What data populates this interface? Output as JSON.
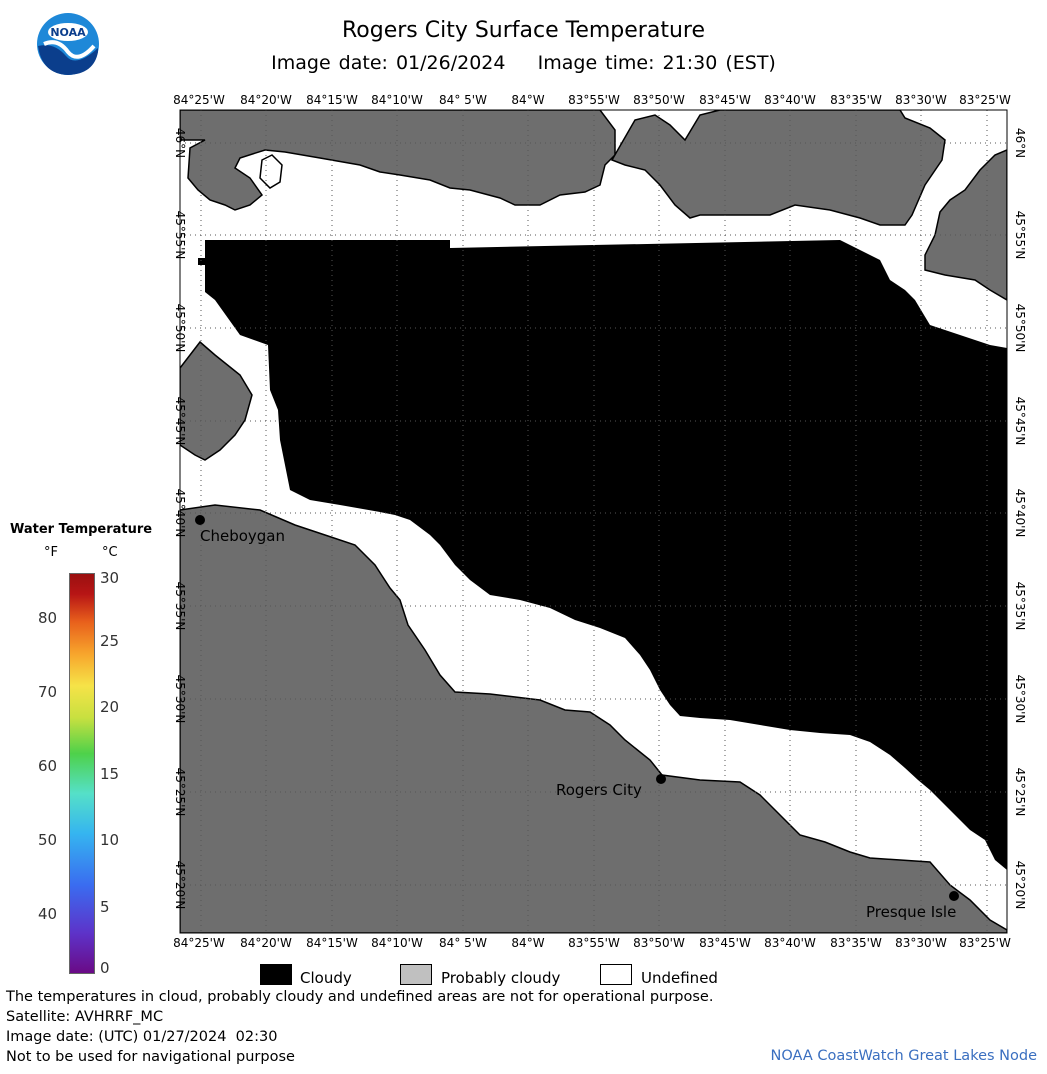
{
  "header": {
    "title": "Rogers City Surface Temperature",
    "subtitle": "Image date: 01/26/2024    Image time: 21:30 (EST)"
  },
  "logo": {
    "text": "NOAA",
    "icon": "noaa-logo-icon"
  },
  "axes": {
    "longitudes": [
      "84°25'W",
      "84°20'W",
      "84°15'W",
      "84°10'W",
      "84° 5'W",
      "84°W",
      "83°55'W",
      "83°50'W",
      "83°45'W",
      "83°40'W",
      "83°35'W",
      "83°30'W",
      "83°25'W"
    ],
    "latitudes": [
      "46°N",
      "45°55'N",
      "45°50'N",
      "45°45'N",
      "45°40'N",
      "45°35'N",
      "45°30'N",
      "45°25'N",
      "45°20'N"
    ]
  },
  "places": [
    {
      "name": "Cheboygan"
    },
    {
      "name": "Rogers City"
    },
    {
      "name": "Presque Isle"
    }
  ],
  "color_scale": {
    "title": "Water Temperature",
    "unit_f": "°F",
    "unit_c": "°C",
    "f_ticks": [
      "80",
      "70",
      "60",
      "50",
      "40"
    ],
    "c_ticks": [
      "30",
      "25",
      "20",
      "15",
      "10",
      "5",
      "0"
    ]
  },
  "legend": {
    "items": [
      {
        "label": "Cloudy",
        "color": "#000000"
      },
      {
        "label": "Probably cloudy",
        "color": "#c0c0c0"
      },
      {
        "label": "Undefined",
        "color": "#ffffff"
      }
    ]
  },
  "colors": {
    "land": "#6e6e6e",
    "cloud": "#000000",
    "undefined": "#ffffff"
  },
  "footer": {
    "line1": "The temperatures in cloud, probably cloudy and undefined areas are not for operational purpose.",
    "line2": "Satellite: AVHRRF_MC",
    "line3": "Image date: (UTC) 01/27/2024  02:30",
    "line4": "Not to be used for navigational purpose",
    "credit": "NOAA CoastWatch Great Lakes Node"
  }
}
